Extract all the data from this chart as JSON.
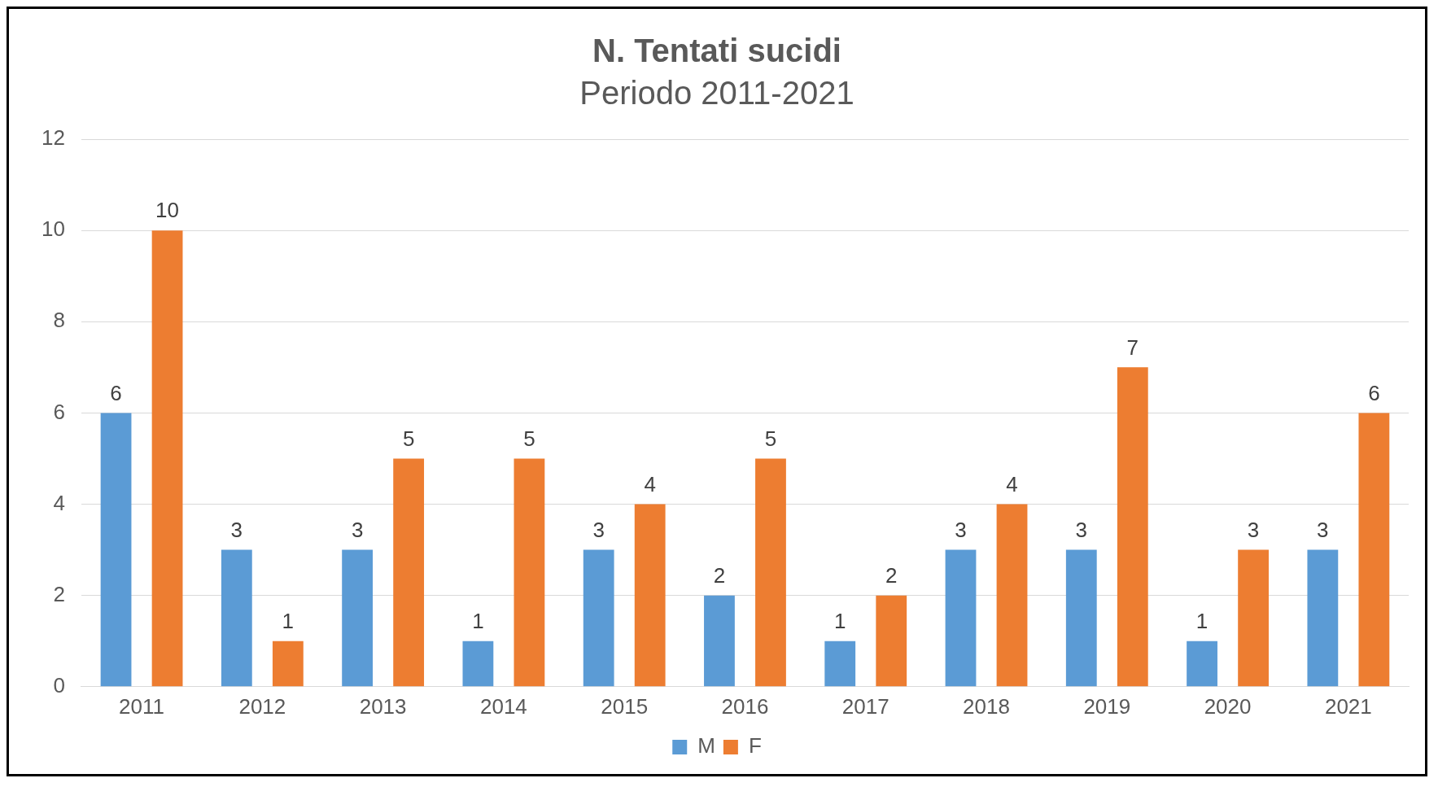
{
  "chart_data": {
    "type": "bar",
    "title": "N. Tentati sucidi",
    "subtitle": "Periodo 2011-2021",
    "categories": [
      "2011",
      "2012",
      "2013",
      "2014",
      "2015",
      "2016",
      "2017",
      "2018",
      "2019",
      "2020",
      "2021"
    ],
    "series": [
      {
        "name": "M",
        "color": "#5b9bd5",
        "values": [
          6,
          3,
          3,
          1,
          3,
          2,
          1,
          3,
          3,
          1,
          3
        ]
      },
      {
        "name": "F",
        "color": "#ed7d31",
        "values": [
          10,
          1,
          5,
          5,
          4,
          5,
          2,
          4,
          7,
          3,
          6
        ]
      }
    ],
    "ylim": [
      0,
      12
    ],
    "yticks": [
      0,
      2,
      4,
      6,
      8,
      10,
      12
    ],
    "grid": "y",
    "legend": "bottom",
    "data_labels": true
  }
}
